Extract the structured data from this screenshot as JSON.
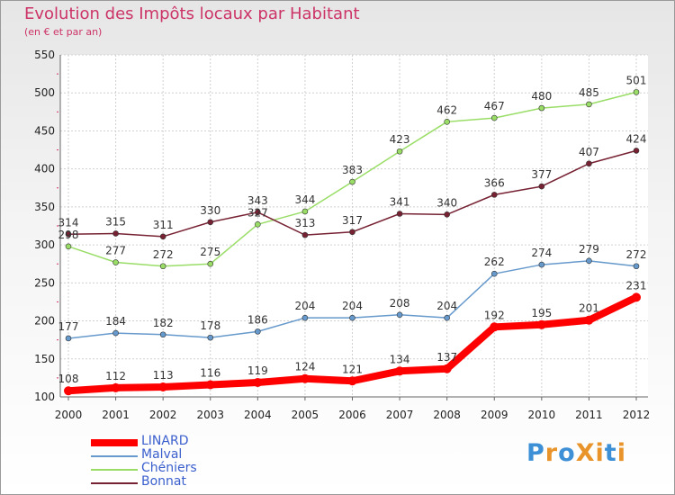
{
  "title": "Evolution des Impôts locaux par Habitant",
  "subtitle": "(en € et par an)",
  "logo": {
    "text": "ProXiti",
    "letters": [
      "P",
      "r",
      "o",
      "X",
      "i",
      "t",
      "i"
    ],
    "colors": [
      "#3d8fd6",
      "#e8942a",
      "#3d8fd6",
      "#e8942a",
      "#e8942a",
      "#3d8fd6",
      "#e8942a"
    ]
  },
  "chart_data": {
    "type": "line",
    "x": [
      "2000",
      "2001",
      "2002",
      "2003",
      "2004",
      "2005",
      "2006",
      "2007",
      "2008",
      "2009",
      "2010",
      "2011",
      "2012"
    ],
    "ylim": [
      100,
      550
    ],
    "yticks": [
      "100",
      "150",
      "200",
      "250",
      "300",
      "350",
      "400",
      "450",
      "500",
      "550"
    ],
    "grid": true,
    "legend_position": "bottom-left",
    "series": [
      {
        "name": "LINARD",
        "values": [
          108,
          112,
          113,
          116,
          119,
          124,
          121,
          134,
          137,
          192,
          195,
          201,
          231
        ],
        "labels": [
          "108",
          "112",
          "113",
          "116",
          "119",
          "124",
          "121",
          "134",
          "137",
          "192",
          "195",
          "201",
          "231"
        ],
        "color": "#ff0000",
        "thick": true
      },
      {
        "name": "Malval",
        "values": [
          177,
          184,
          182,
          178,
          186,
          204,
          204,
          208,
          204,
          262,
          274,
          279,
          272
        ],
        "labels": [
          "177",
          "184",
          "182",
          "178",
          "186",
          "204",
          "204",
          "208",
          "204",
          "262",
          "274",
          "279",
          "272"
        ],
        "color": "#6699cc",
        "thick": false
      },
      {
        "name": "Chéniers",
        "values": [
          298,
          277,
          272,
          275,
          327,
          344,
          383,
          423,
          462,
          467,
          480,
          485,
          501
        ],
        "labels": [
          "298",
          "277",
          "272",
          "275",
          "327",
          "344",
          "383",
          "423",
          "462",
          "467",
          "480",
          "485",
          "501"
        ],
        "color": "#99dd66",
        "thick": false
      },
      {
        "name": "Bonnat",
        "values": [
          314,
          315,
          311,
          330,
          343,
          313,
          317,
          341,
          340,
          366,
          377,
          407,
          424
        ],
        "labels": [
          "314",
          "315",
          "311",
          "330",
          "343",
          "313",
          "317",
          "341",
          "340",
          "366",
          "377",
          "407",
          "424"
        ],
        "color": "#772233",
        "thick": false
      }
    ]
  }
}
